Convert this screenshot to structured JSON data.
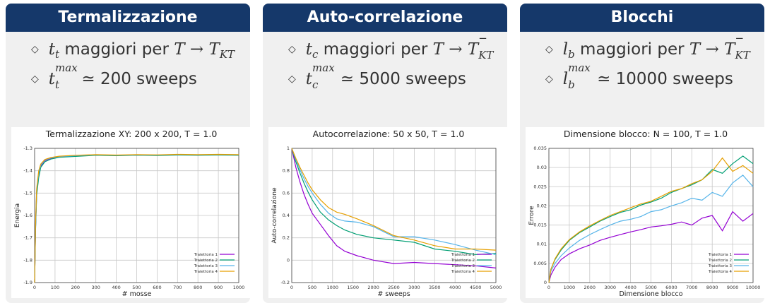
{
  "panels": [
    {
      "header": "Termalizzazione",
      "b1": {
        "v": "t",
        "sub": "t",
        "text": " maggiori per ",
        "T": "T",
        "arrow": "→",
        "T2": "T",
        "t2sub": "KT",
        "t2sup": ""
      },
      "b2": {
        "v": "t",
        "sub": "t",
        "sup": "max",
        "approx": "≃",
        "text": " 200 sweeps"
      }
    },
    {
      "header": "Auto-correlazione",
      "b1": {
        "v": "t",
        "sub": "c",
        "text": " maggiori per ",
        "T": "T",
        "arrow": "→",
        "T2": "T",
        "t2sub": "KT",
        "t2sup": "−"
      },
      "b2": {
        "v": "t",
        "sub": "c",
        "sup": "max",
        "approx": "≃",
        "text": " 5000 sweeps"
      }
    },
    {
      "header": "Blocchi",
      "b1": {
        "v": "l",
        "sub": "b",
        "text": " maggiori per ",
        "T": "T",
        "arrow": "→",
        "T2": "T",
        "t2sub": "KT",
        "t2sup": "−"
      },
      "b2": {
        "v": "l",
        "sub": "b",
        "sup": "max",
        "approx": "≃",
        "text": " 10000 sweeps"
      }
    }
  ],
  "colors": {
    "header_bg": "#15386a",
    "panel_bg": "#f0f0f0",
    "s1": "#9400d3",
    "s2": "#009e73",
    "s3": "#56b4e9",
    "s4": "#e69f00"
  },
  "chart_data": [
    {
      "type": "line",
      "title": "Termalizzazione XY: 200 x 200, T = 1.0",
      "xlabel": "# mosse",
      "ylabel": "Energia",
      "xlim": [
        0,
        1000
      ],
      "ylim": [
        -1.9,
        -1.3
      ],
      "xticks": [
        "0",
        "100",
        "200",
        "300",
        "400",
        "500",
        "600",
        "700",
        "800",
        "900",
        "1000"
      ],
      "yticks": [
        "-1.9",
        "-1.8",
        "-1.7",
        "-1.6",
        "-1.5",
        "-1.4",
        "-1.3"
      ],
      "grid": true,
      "legend": "bottom-right",
      "series": [
        {
          "name": "Traiettoria 1",
          "x": [
            0,
            5,
            10,
            20,
            30,
            50,
            80,
            120,
            200,
            300,
            400,
            500,
            600,
            700,
            800,
            900,
            1000
          ],
          "y": [
            -1.9,
            -1.65,
            -1.5,
            -1.42,
            -1.38,
            -1.355,
            -1.345,
            -1.338,
            -1.334,
            -1.33,
            -1.332,
            -1.33,
            -1.331,
            -1.329,
            -1.33,
            -1.329,
            -1.33
          ]
        },
        {
          "name": "Traiettoria 2",
          "x": [
            0,
            5,
            10,
            20,
            30,
            50,
            80,
            120,
            200,
            300,
            400,
            500,
            600,
            700,
            800,
            900,
            1000
          ],
          "y": [
            -1.9,
            -1.66,
            -1.51,
            -1.43,
            -1.385,
            -1.36,
            -1.348,
            -1.34,
            -1.336,
            -1.331,
            -1.333,
            -1.331,
            -1.332,
            -1.33,
            -1.331,
            -1.33,
            -1.331
          ]
        },
        {
          "name": "Traiettoria 3",
          "x": [
            0,
            5,
            10,
            20,
            30,
            50,
            80,
            120,
            200,
            300,
            400,
            500,
            600,
            700,
            800,
            900,
            1000
          ],
          "y": [
            -1.9,
            -1.64,
            -1.49,
            -1.41,
            -1.375,
            -1.352,
            -1.343,
            -1.337,
            -1.333,
            -1.329,
            -1.331,
            -1.33,
            -1.33,
            -1.328,
            -1.329,
            -1.328,
            -1.329
          ]
        },
        {
          "name": "Traiettoria 4",
          "x": [
            0,
            5,
            10,
            20,
            30,
            50,
            80,
            120,
            200,
            300,
            400,
            500,
            600,
            700,
            800,
            900,
            1000
          ],
          "y": [
            -1.9,
            -1.63,
            -1.48,
            -1.4,
            -1.37,
            -1.35,
            -1.341,
            -1.335,
            -1.331,
            -1.328,
            -1.33,
            -1.328,
            -1.329,
            -1.327,
            -1.328,
            -1.327,
            -1.328
          ]
        }
      ]
    },
    {
      "type": "line",
      "title": "Autocorrelazione: 50 x 50, T = 1.0",
      "xlabel": "# sweeps",
      "ylabel": "Auto-correlazione",
      "xlim": [
        0,
        5000
      ],
      "ylim": [
        -0.2,
        1
      ],
      "xticks": [
        "0",
        "500",
        "1000",
        "1500",
        "2000",
        "2500",
        "3000",
        "3500",
        "4000",
        "4500",
        "5000"
      ],
      "yticks": [
        "-0.2",
        "0",
        "0.2",
        "0.4",
        "0.6",
        "0.8",
        "1"
      ],
      "grid": true,
      "legend": "bottom-right",
      "series": [
        {
          "name": "Traiettoria 1",
          "x": [
            0,
            100,
            200,
            300,
            400,
            500,
            700,
            900,
            1100,
            1300,
            1600,
            2000,
            2500,
            3000,
            3500,
            4000,
            4500,
            5000
          ],
          "y": [
            1,
            0.83,
            0.7,
            0.59,
            0.5,
            0.42,
            0.32,
            0.22,
            0.13,
            0.08,
            0.04,
            0.0,
            -0.03,
            -0.02,
            -0.03,
            -0.04,
            -0.05,
            -0.07
          ]
        },
        {
          "name": "Traiettoria 2",
          "x": [
            0,
            100,
            200,
            300,
            400,
            500,
            700,
            900,
            1100,
            1300,
            1600,
            2000,
            2500,
            3000,
            3500,
            4000,
            4500,
            5000
          ],
          "y": [
            1,
            0.88,
            0.78,
            0.69,
            0.61,
            0.54,
            0.43,
            0.36,
            0.31,
            0.27,
            0.23,
            0.2,
            0.18,
            0.16,
            0.1,
            0.08,
            0.05,
            0.06
          ]
        },
        {
          "name": "Traiettoria 3",
          "x": [
            0,
            100,
            200,
            300,
            400,
            500,
            700,
            900,
            1100,
            1300,
            1600,
            2000,
            2500,
            3000,
            3500,
            4000,
            4500,
            5000
          ],
          "y": [
            1,
            0.9,
            0.81,
            0.73,
            0.66,
            0.6,
            0.5,
            0.42,
            0.37,
            0.35,
            0.34,
            0.3,
            0.21,
            0.21,
            0.18,
            0.14,
            0.09,
            0.05
          ]
        },
        {
          "name": "Traiettoria 4",
          "x": [
            0,
            100,
            200,
            300,
            400,
            500,
            700,
            900,
            1100,
            1300,
            1600,
            2000,
            2500,
            3000,
            3500,
            4000,
            4500,
            5000
          ],
          "y": [
            1,
            0.91,
            0.83,
            0.76,
            0.69,
            0.63,
            0.54,
            0.47,
            0.43,
            0.41,
            0.37,
            0.31,
            0.22,
            0.18,
            0.13,
            0.1,
            0.1,
            0.09
          ]
        }
      ]
    },
    {
      "type": "line",
      "title": "Dimensione blocco: N = 100, T = 1.0",
      "xlabel": "Dimensione blocco",
      "ylabel": "Errore",
      "xlim": [
        0,
        10000
      ],
      "ylim": [
        0,
        0.035
      ],
      "xticks": [
        "0",
        "1000",
        "2000",
        "3000",
        "4000",
        "5000",
        "6000",
        "7000",
        "8000",
        "9000",
        "10000"
      ],
      "yticks": [
        "0",
        "0.005",
        "0.01",
        "0.015",
        "0.02",
        "0.025",
        "0.03",
        "0.035"
      ],
      "grid": true,
      "legend": "bottom-right",
      "series": [
        {
          "name": "Traiettoria 1",
          "x": [
            0,
            100,
            300,
            600,
            1000,
            1500,
            2000,
            2500,
            3000,
            3500,
            4000,
            4500,
            5000,
            5500,
            6000,
            6500,
            7000,
            7500,
            8000,
            8500,
            9000,
            9500,
            10000
          ],
          "y": [
            0,
            0.002,
            0.004,
            0.006,
            0.0075,
            0.0088,
            0.0098,
            0.011,
            0.0118,
            0.0125,
            0.0132,
            0.0138,
            0.0145,
            0.0148,
            0.0152,
            0.0158,
            0.015,
            0.0168,
            0.0175,
            0.0135,
            0.0185,
            0.016,
            0.018
          ]
        },
        {
          "name": "Traiettoria 2",
          "x": [
            0,
            100,
            300,
            600,
            1000,
            1500,
            2000,
            2500,
            3000,
            3500,
            4000,
            4500,
            5000,
            5500,
            6000,
            6500,
            7000,
            7500,
            8000,
            8500,
            9000,
            9500,
            10000
          ],
          "y": [
            0,
            0.0035,
            0.006,
            0.0085,
            0.011,
            0.013,
            0.0145,
            0.016,
            0.0172,
            0.0183,
            0.019,
            0.0202,
            0.021,
            0.022,
            0.0235,
            0.0245,
            0.0255,
            0.0268,
            0.0295,
            0.0285,
            0.031,
            0.033,
            0.031
          ]
        },
        {
          "name": "Traiettoria 3",
          "x": [
            0,
            100,
            300,
            600,
            1000,
            1500,
            2000,
            2500,
            3000,
            3500,
            4000,
            4500,
            5000,
            5500,
            6000,
            6500,
            7000,
            7500,
            8000,
            8500,
            9000,
            9500,
            10000
          ],
          "y": [
            0,
            0.003,
            0.005,
            0.007,
            0.009,
            0.011,
            0.0125,
            0.0138,
            0.015,
            0.016,
            0.0165,
            0.0172,
            0.0185,
            0.019,
            0.02,
            0.0208,
            0.022,
            0.0215,
            0.0235,
            0.0225,
            0.026,
            0.028,
            0.025
          ]
        },
        {
          "name": "Traiettoria 4",
          "x": [
            0,
            100,
            300,
            600,
            1000,
            1500,
            2000,
            2500,
            3000,
            3500,
            4000,
            4500,
            5000,
            5500,
            6000,
            6500,
            7000,
            7500,
            8000,
            8500,
            9000,
            9500,
            10000
          ],
          "y": [
            0,
            0.0035,
            0.0062,
            0.0088,
            0.0112,
            0.0132,
            0.0148,
            0.0162,
            0.0175,
            0.0185,
            0.0195,
            0.0205,
            0.0212,
            0.0225,
            0.0238,
            0.0245,
            0.0258,
            0.0268,
            0.029,
            0.0325,
            0.029,
            0.0305,
            0.0285
          ]
        }
      ]
    }
  ]
}
